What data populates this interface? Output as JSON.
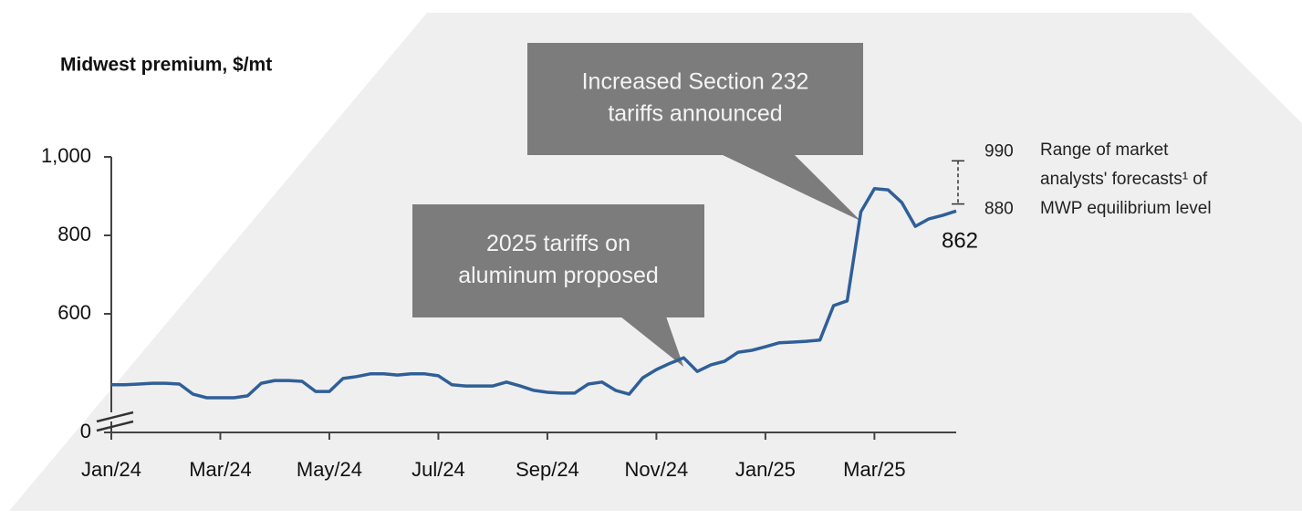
{
  "chart_data": {
    "type": "line",
    "title": "Midwest premium, $/mt",
    "categories": [
      "Jan/24",
      null,
      null,
      null,
      null,
      null,
      null,
      null,
      "Mar/24",
      null,
      null,
      null,
      null,
      null,
      null,
      null,
      "May/24",
      null,
      null,
      null,
      null,
      null,
      null,
      null,
      "Jul/24",
      null,
      null,
      null,
      null,
      null,
      null,
      null,
      "Sep/24",
      null,
      null,
      null,
      null,
      null,
      null,
      null,
      "Nov/24",
      null,
      null,
      null,
      null,
      null,
      null,
      null,
      "Jan/25",
      null,
      null,
      null,
      null,
      null,
      null,
      null,
      "Mar/25",
      null,
      null,
      null,
      null,
      null,
      null
    ],
    "values": [
      419,
      419,
      421,
      423,
      423,
      421,
      395,
      386,
      386,
      386,
      391,
      423,
      430,
      430,
      428,
      402,
      402,
      435,
      440,
      447,
      447,
      444,
      447,
      447,
      442,
      419,
      416,
      416,
      416,
      426,
      416,
      405,
      400,
      398,
      398,
      421,
      426,
      405,
      395,
      437,
      458,
      474,
      488,
      453,
      470,
      479,
      502,
      507,
      516,
      526,
      528,
      530,
      533,
      621,
      633,
      860,
      919,
      916,
      884,
      823,
      842,
      851,
      862
    ],
    "color": "#2f5f98",
    "ylim": [
      0,
      1000
    ],
    "yticks": [
      0,
      600,
      800,
      {
        "value": 1000,
        "label": "1,000"
      }
    ],
    "axis_break": true,
    "callouts": [
      {
        "lines": [
          "2025 tariffs on",
          "aluminum proposed"
        ],
        "point": 42
      },
      {
        "lines": [
          "Increased Section 232",
          "tariffs announced"
        ],
        "point": 55
      }
    ],
    "forecast_range": {
      "high": 990,
      "low": 880,
      "lines": [
        "Range of market",
        "analysts' forecasts¹ of",
        "MWP equilibrium level"
      ]
    }
  }
}
